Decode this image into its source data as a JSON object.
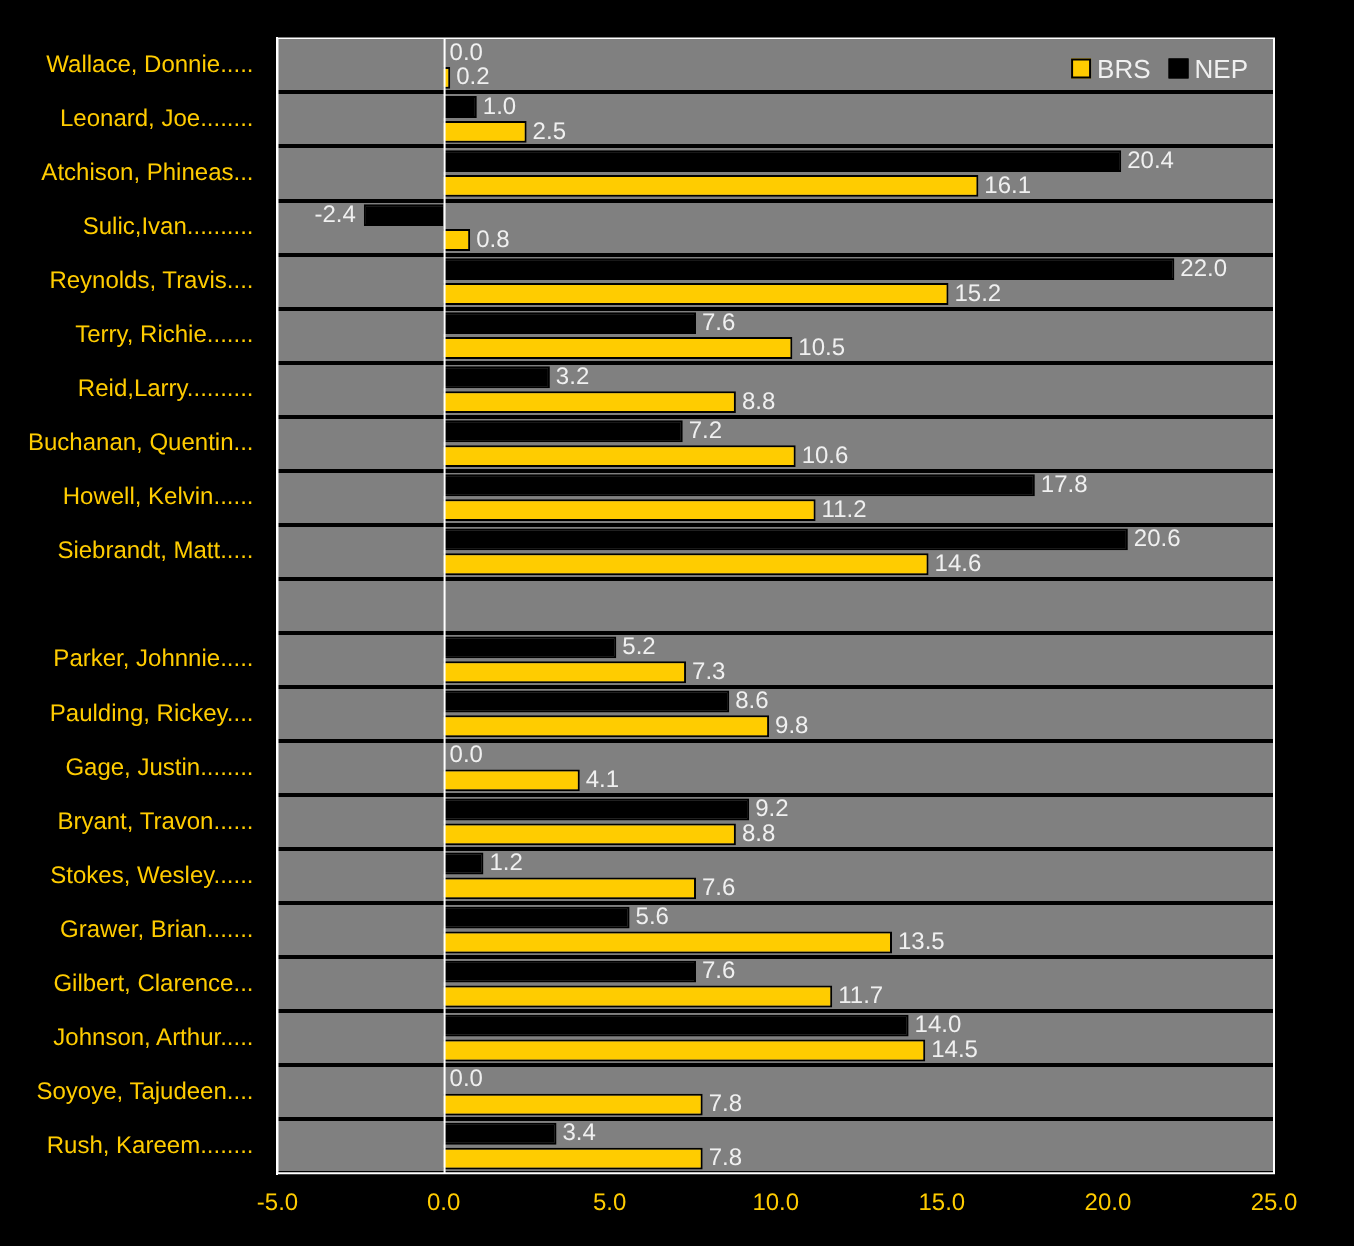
{
  "chart_data": {
    "type": "bar",
    "orientation": "horizontal",
    "categories": [
      "Wallace, Donnie.....",
      "Leonard, Joe........",
      "Atchison, Phineas...",
      "Sulic,Ivan..........",
      "Reynolds, Travis....",
      "Terry, Richie.......",
      "Reid,Larry..........",
      "Buchanan, Quentin...",
      "Howell, Kelvin......",
      "Siebrandt, Matt.....",
      null,
      "Parker, Johnnie.....",
      "Paulding, Rickey....",
      "Gage, Justin........",
      "Bryant, Travon......",
      "Stokes, Wesley......",
      "Grawer, Brian.......",
      "Gilbert, Clarence...",
      "Johnson, Arthur.....",
      "Soyoye, Tajudeen....",
      "Rush, Kareem........"
    ],
    "series": [
      {
        "name": "BRS",
        "color": "#ffcc00",
        "values": [
          0.2,
          2.5,
          16.1,
          0.8,
          15.2,
          10.5,
          8.8,
          10.6,
          11.2,
          14.6,
          null,
          7.3,
          9.8,
          4.1,
          8.8,
          7.6,
          13.5,
          11.7,
          14.5,
          7.8,
          7.8
        ],
        "value_labels": [
          "0.2",
          "2.5",
          "16.1",
          "0.8",
          "15.2",
          "10.5",
          "8.8",
          "10.6",
          "11.2",
          "14.6",
          null,
          "7.3",
          "9.8",
          "4.1",
          "8.8",
          "7.6",
          "13.5",
          "11.7",
          "14.5",
          "7.8",
          "7.8"
        ]
      },
      {
        "name": "NEP",
        "color": "#000000",
        "values": [
          0,
          1,
          20.4,
          -2.4,
          22,
          7.6,
          3.2,
          7.2,
          17.8,
          20.6,
          null,
          5.2,
          8.6,
          0,
          9.2,
          1.2,
          5.6,
          7.6,
          14,
          0,
          3.4
        ],
        "value_labels": [
          "0.0",
          "1.0",
          "20.4",
          "-2.4",
          "22.0",
          "7.6",
          "3.2",
          "7.2",
          "17.8",
          "20.6",
          null,
          "5.2",
          "8.6",
          "0.0",
          "9.2",
          "1.2",
          "5.6",
          "7.6",
          "14.0",
          "0.0",
          "3.4"
        ]
      }
    ],
    "xlim": [
      -5,
      25
    ],
    "xticks": [
      {
        "value": -5,
        "label": "-5.0"
      },
      {
        "value": 0,
        "label": "0.0"
      },
      {
        "value": 5,
        "label": "5.0"
      },
      {
        "value": 10,
        "label": "10.0"
      },
      {
        "value": 15,
        "label": "15.0"
      },
      {
        "value": 20,
        "label": "20.0"
      },
      {
        "value": 25,
        "label": "25.0"
      }
    ],
    "grid": "y",
    "legend": "top right"
  }
}
